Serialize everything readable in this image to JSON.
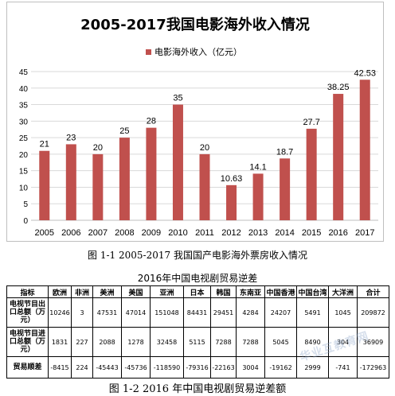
{
  "chart_data": {
    "type": "bar",
    "title": "2005-2017我国电影海外收入情况",
    "legend": {
      "label": "电影海外收入（亿元）",
      "position": "top"
    },
    "categories": [
      "2005",
      "2006",
      "2007",
      "2008",
      "2009",
      "2010",
      "2011",
      "2012",
      "2013",
      "2014",
      "2015",
      "2016",
      "2017"
    ],
    "series": [
      {
        "name": "电影海外收入（亿元）",
        "values": [
          21,
          23,
          20,
          25,
          28,
          35,
          20,
          10.63,
          14.1,
          18.7,
          27.7,
          38.25,
          42.53
        ]
      }
    ],
    "data_labels": [
      "21",
      "23",
      "20",
      "25",
      "28",
      "35",
      "20",
      "10.63",
      "14.1",
      "18.7",
      "27.7",
      "38.25",
      "42.53"
    ],
    "ylim": [
      0,
      45
    ],
    "yticks": [
      0,
      5,
      10,
      15,
      20,
      25,
      30,
      35,
      40,
      45
    ],
    "grid": true,
    "bar_color": "#c0504d"
  },
  "captions": {
    "figure1": "图 1-1 2005-2017 我国国产电影海外票房收入情况",
    "figure2": "图 1-2 2016 年中国电视剧贸易逆差额"
  },
  "table": {
    "title": "2016年中国电视剧贸易逆差",
    "headers": [
      "指标",
      "欧洲",
      "非洲",
      "美洲",
      "美国",
      "亚洲",
      "日本",
      "韩国",
      "东南亚",
      "中国香港",
      "中国台湾",
      "大洋洲",
      "合计"
    ],
    "rows": [
      {
        "label": "电视节目出口总额（万元）",
        "cells": [
          "10246",
          "3",
          "47531",
          "47014",
          "151048",
          "84431",
          "29451",
          "4284",
          "24207",
          "5491",
          "1045",
          "209872"
        ]
      },
      {
        "label": "电视节目进口总额（万元）",
        "cells": [
          "1831",
          "227",
          "2088",
          "1278",
          "32458",
          "5115",
          "7288",
          "7288",
          "5045",
          "8490",
          "304",
          "36909"
        ]
      },
      {
        "label": "贸易顺差",
        "cells": [
          "-8415",
          "224",
          "-45443",
          "-45736",
          "-118590",
          "-79316",
          "-22163",
          "3004",
          "-19162",
          "2999",
          "-741",
          "-172963"
        ]
      }
    ]
  },
  "watermark": "华业互教育网"
}
